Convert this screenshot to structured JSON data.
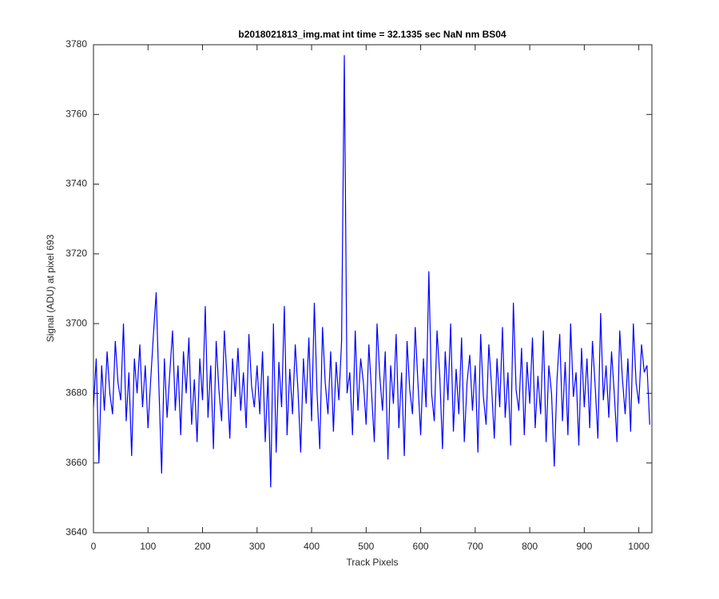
{
  "chart_data": {
    "type": "line",
    "title": "b2018021813_img.mat int time = 32.1335 sec  NaN nm BS04",
    "x_label": "Track Pixels",
    "y_label": "Signal (ADU) at pixel 693",
    "xlim": [
      0,
      1024
    ],
    "ylim": [
      3640,
      3780
    ],
    "xticks": [
      0,
      100,
      200,
      300,
      400,
      500,
      600,
      700,
      800,
      900,
      1000
    ],
    "yticks": [
      3640,
      3660,
      3680,
      3700,
      3720,
      3740,
      3760,
      3780
    ],
    "grid": false,
    "x": [
      0,
      5,
      10,
      15,
      20,
      25,
      30,
      35,
      40,
      45,
      50,
      55,
      60,
      65,
      70,
      75,
      80,
      85,
      90,
      95,
      100,
      105,
      110,
      115,
      120,
      125,
      130,
      135,
      140,
      145,
      150,
      155,
      160,
      165,
      170,
      175,
      180,
      185,
      190,
      195,
      200,
      205,
      210,
      215,
      220,
      225,
      230,
      235,
      240,
      245,
      250,
      255,
      260,
      265,
      270,
      275,
      280,
      285,
      290,
      295,
      300,
      305,
      310,
      315,
      320,
      325,
      330,
      335,
      340,
      345,
      350,
      355,
      360,
      365,
      370,
      375,
      380,
      385,
      390,
      395,
      400,
      405,
      410,
      415,
      420,
      425,
      430,
      435,
      440,
      445,
      450,
      455,
      460,
      465,
      470,
      475,
      480,
      485,
      490,
      495,
      500,
      505,
      510,
      515,
      520,
      525,
      530,
      535,
      540,
      545,
      550,
      555,
      560,
      565,
      570,
      575,
      580,
      585,
      590,
      595,
      600,
      605,
      610,
      615,
      620,
      625,
      630,
      635,
      640,
      645,
      650,
      655,
      660,
      665,
      670,
      675,
      680,
      685,
      690,
      695,
      700,
      705,
      710,
      715,
      720,
      725,
      730,
      735,
      740,
      745,
      750,
      755,
      760,
      765,
      770,
      775,
      780,
      785,
      790,
      795,
      800,
      805,
      810,
      815,
      820,
      825,
      830,
      835,
      840,
      845,
      850,
      855,
      860,
      865,
      870,
      875,
      880,
      885,
      890,
      895,
      900,
      905,
      910,
      915,
      920,
      925,
      930,
      935,
      940,
      945,
      950,
      955,
      960,
      965,
      970,
      975,
      980,
      985,
      990,
      995,
      1000,
      1005,
      1010,
      1015,
      1020
    ],
    "series": [
      {
        "name": "signal",
        "color": "#0000ff",
        "values": [
          3676,
          3690,
          3660,
          3688,
          3675,
          3692,
          3680,
          3674,
          3695,
          3683,
          3678,
          3700,
          3672,
          3686,
          3662,
          3690,
          3680,
          3694,
          3676,
          3688,
          3670,
          3684,
          3697,
          3709,
          3682,
          3657,
          3690,
          3673,
          3686,
          3698,
          3675,
          3688,
          3668,
          3692,
          3680,
          3696,
          3671,
          3684,
          3666,
          3690,
          3678,
          3705,
          3673,
          3688,
          3664,
          3695,
          3681,
          3672,
          3698,
          3684,
          3667,
          3690,
          3679,
          3693,
          3675,
          3686,
          3670,
          3697,
          3682,
          3676,
          3688,
          3674,
          3692,
          3666,
          3685,
          3653,
          3700,
          3663,
          3689,
          3676,
          3705,
          3668,
          3687,
          3674,
          3694,
          3681,
          3663,
          3690,
          3677,
          3696,
          3672,
          3706,
          3680,
          3664,
          3699,
          3683,
          3674,
          3692,
          3669,
          3689,
          3678,
          3695,
          3777,
          3680,
          3686,
          3668,
          3698,
          3675,
          3690,
          3683,
          3671,
          3694,
          3680,
          3666,
          3700,
          3685,
          3675,
          3692,
          3661,
          3688,
          3677,
          3697,
          3670,
          3686,
          3662,
          3695,
          3681,
          3674,
          3699,
          3683,
          3668,
          3690,
          3676,
          3715,
          3680,
          3672,
          3698,
          3685,
          3664,
          3692,
          3678,
          3700,
          3669,
          3687,
          3674,
          3696,
          3666,
          3683,
          3691,
          3675,
          3688,
          3663,
          3697,
          3679,
          3671,
          3694,
          3682,
          3667,
          3690,
          3676,
          3699,
          3673,
          3686,
          3665,
          3706,
          3681,
          3675,
          3693,
          3668,
          3689,
          3677,
          3696,
          3670,
          3685,
          3674,
          3698,
          3666,
          3688,
          3680,
          3659,
          3684,
          3697,
          3672,
          3689,
          3668,
          3700,
          3679,
          3686,
          3665,
          3693,
          3676,
          3690,
          3670,
          3695,
          3682,
          3667,
          3703,
          3678,
          3688,
          3673,
          3692,
          3680,
          3666,
          3698,
          3684,
          3674,
          3690,
          3669,
          3700,
          3683,
          3677,
          3694,
          3686,
          3688,
          3671
        ]
      }
    ]
  }
}
